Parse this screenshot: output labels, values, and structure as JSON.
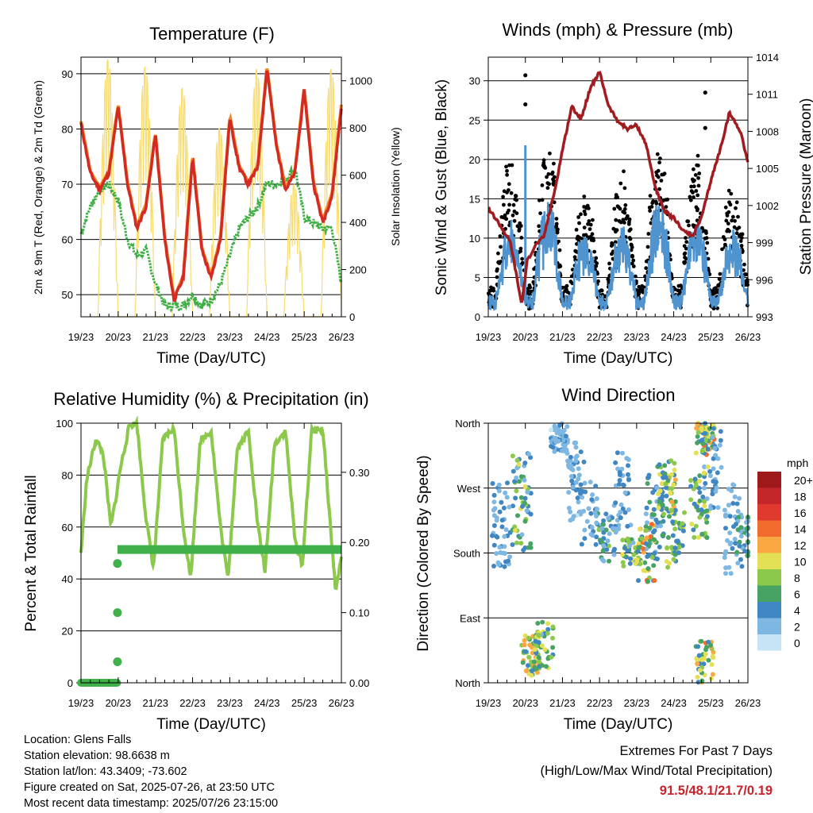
{
  "colors": {
    "red": "#d42a24",
    "orange": "#f08a2a",
    "green": "#3fae45",
    "yellow": "#f7dc6f",
    "maroon": "#a01c20",
    "blue": "#4f94cf",
    "black": "#000000",
    "rh_green": "#8cc84b",
    "precip_green": "#3fb04a"
  },
  "x_ticks": [
    "19/23",
    "20/23",
    "21/23",
    "22/23",
    "23/23",
    "24/23",
    "25/23",
    "26/23"
  ],
  "x_label": "Time (Day/UTC)",
  "chart_data": [
    {
      "type": "line",
      "title": "Temperature (F)",
      "xlabel": "Time (Day/UTC)",
      "ylabel": "2m & 9m T (Red, Orange) & 2m Td (Green)",
      "ylabel_right": "Solar Insolation (Yellow)",
      "ylim": [
        46,
        93
      ],
      "yticks": [
        50,
        60,
        70,
        80,
        90
      ],
      "ylim_right": [
        0,
        1100
      ],
      "yticks_right": [
        0,
        200,
        400,
        600,
        800,
        1000
      ],
      "x": [
        0,
        0.25,
        0.5,
        0.75,
        1,
        1.25,
        1.5,
        1.75,
        2,
        2.25,
        2.5,
        2.75,
        3,
        3.25,
        3.5,
        3.75,
        4,
        4.25,
        4.5,
        4.75,
        5,
        5.25,
        5.5,
        5.75,
        6,
        6.25,
        6.5,
        6.75,
        7
      ],
      "series": [
        {
          "name": "2m T",
          "color": "red",
          "values": [
            81,
            72,
            69,
            72,
            84,
            70,
            62,
            66,
            79,
            60,
            49,
            53,
            75,
            58,
            53,
            60,
            82,
            73,
            70,
            73,
            91,
            77,
            69,
            72,
            87,
            70,
            63,
            68,
            84
          ]
        },
        {
          "name": "9m T",
          "color": "orange",
          "values": [
            81,
            72,
            69,
            72,
            84,
            70,
            62,
            66,
            79,
            60,
            49,
            53,
            75,
            58,
            53,
            60,
            82,
            73,
            70,
            73,
            91,
            77,
            69,
            72,
            87,
            70,
            63,
            68,
            84
          ]
        },
        {
          "name": "2m Td",
          "color": "green",
          "values": [
            61,
            66,
            69,
            70,
            67,
            60,
            57,
            58,
            52,
            48,
            48,
            48,
            50,
            48,
            49,
            52,
            57,
            62,
            64,
            66,
            70,
            70,
            71,
            73,
            64,
            63,
            62,
            62,
            52
          ]
        }
      ],
      "solar_daily_peaks": [
        1090,
        1060,
        970,
        800,
        1050,
        560,
        1050
      ]
    },
    {
      "type": "scatter",
      "title": "Winds (mph) & Pressure (mb)",
      "xlabel": "Time (Day/UTC)",
      "ylabel": "Sonic Wind & Gust (Blue, Black)",
      "ylabel_right": "Station Pressure (Maroon)",
      "ylim": [
        0,
        33
      ],
      "yticks": [
        0,
        5,
        10,
        15,
        20,
        25,
        30
      ],
      "ylim_right": [
        993,
        1014
      ],
      "yticks_right": [
        993,
        996,
        999,
        1002,
        1005,
        1008,
        1011,
        1014
      ],
      "wind_daily_peak": [
        12,
        16,
        10,
        11,
        15,
        13,
        11
      ],
      "gust_daily_peak": [
        18,
        20,
        13,
        15,
        19,
        18,
        14
      ],
      "gust_outliers": [
        {
          "x": 1.0,
          "y": 30.7
        },
        {
          "x": 1.0,
          "y": 27
        },
        {
          "x": 5.85,
          "y": 28.5
        },
        {
          "x": 5.85,
          "y": 24
        }
      ],
      "pressure": {
        "x": [
          0,
          0.3,
          0.6,
          0.9,
          1.05,
          1.25,
          1.5,
          1.8,
          2.0,
          2.25,
          2.5,
          2.75,
          3.0,
          3.25,
          3.5,
          3.75,
          4.0,
          4.25,
          4.5,
          4.75,
          5.0,
          5.25,
          5.5,
          5.75,
          6.0,
          6.25,
          6.5,
          6.8,
          7.0
        ],
        "values": [
          1001.8,
          1000.5,
          999.0,
          994.0,
          997.5,
          998.7,
          999.5,
          1003.3,
          1006.5,
          1010.0,
          1009.0,
          1011.5,
          1012.8,
          1010.0,
          1008.8,
          1008.2,
          1008.5,
          1007.0,
          1003.5,
          1001.5,
          1001.0,
          1000.0,
          999.5,
          1001.0,
          1004.0,
          1006.5,
          1009.5,
          1008.0,
          1005.5
        ]
      }
    },
    {
      "type": "scatter",
      "title": "Relative Humidity (%) & Precipitation (in)",
      "xlabel": "Time (Day/UTC)",
      "ylabel": "Percent & Total Rainfall",
      "ylim": [
        0,
        100
      ],
      "yticks": [
        0,
        20,
        40,
        60,
        80,
        100
      ],
      "ylim_right": [
        0,
        0.37
      ],
      "yticks_right": [
        "0.00",
        "0.10",
        "0.20",
        "0.30"
      ],
      "rh": {
        "x": [
          0,
          0.15,
          0.4,
          0.6,
          0.8,
          0.95,
          1.05,
          1.3,
          1.5,
          1.75,
          1.95,
          2.2,
          2.5,
          2.75,
          2.95,
          3.2,
          3.5,
          3.75,
          3.95,
          4.2,
          4.5,
          4.75,
          4.95,
          5.2,
          5.5,
          5.75,
          5.95,
          6.2,
          6.5,
          6.75,
          6.85,
          7.0
        ],
        "values": [
          50,
          78,
          94,
          88,
          60,
          72,
          82,
          99,
          100,
          63,
          44,
          94,
          98,
          60,
          40,
          93,
          97,
          60,
          40,
          90,
          97,
          61,
          43,
          92,
          97,
          55,
          45,
          97,
          98,
          52,
          35,
          49
        ]
      },
      "precip": {
        "x": [
          0,
          0.3,
          0.6,
          0.85,
          0.95,
          0.97,
          0.98,
          0.99,
          1.0,
          7.0
        ],
        "values": [
          0.0,
          0.0,
          0.0,
          0.0,
          0.03,
          0.1,
          0.17,
          0.185,
          0.19,
          0.19
        ]
      }
    },
    {
      "type": "scatter",
      "title": "Wind Direction",
      "xlabel": "Time (Day/UTC)",
      "ylabel": "Direction (Colored By Speed)",
      "ylim": [
        0,
        360
      ],
      "yticks": [
        "North",
        "East",
        "South",
        "West",
        "North"
      ],
      "legend_title": "mph",
      "legend_labels": [
        "20+",
        "18",
        "16",
        "14",
        "12",
        "10",
        "8",
        "6",
        "4",
        "2",
        "0"
      ],
      "legend_colors": [
        "#9e1a1a",
        "#c4262a",
        "#e0392e",
        "#f26b2f",
        "#f9a843",
        "#e3e055",
        "#8cc84b",
        "#46a363",
        "#3f86c2",
        "#7fb7e3",
        "#c6e4f6"
      ]
    }
  ],
  "footer": {
    "location": "Location: Glens Falls",
    "elevation": "Station elevation: 98.6638 m",
    "latlon": "Station lat/lon: 43.3409; -73.602",
    "created": "Figure created on Sat, 2025-07-26, at 23:50 UTC",
    "recent": "Most recent data timestamp: 2025/07/26 23:15:00"
  },
  "extremes": {
    "title": "Extremes For Past 7 Days",
    "subtitle": "(High/Low/Max Wind/Total Precipitation)",
    "values": "91.5/48.1/21.7/0.19"
  }
}
